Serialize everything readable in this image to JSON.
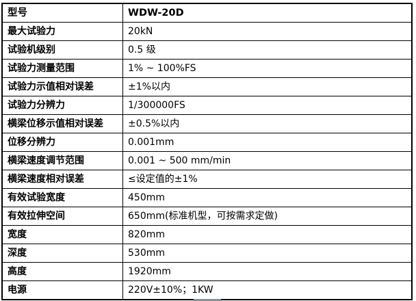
{
  "table": {
    "header": {
      "label": "型号",
      "value": "WDW-20D"
    },
    "rows": [
      {
        "label": "最大试验力",
        "value": "20kN"
      },
      {
        "label": "试验机级别",
        "value": "0.5 级"
      },
      {
        "label": "试验力测量范围",
        "value": "1% ~ 100%FS"
      },
      {
        "label": "试验力示值相对误差",
        "value": "±1%以内"
      },
      {
        "label": "试验力分辨力",
        "value": "1/300000FS"
      },
      {
        "label": "横梁位移示值相对误差",
        "value": "±0.5%以内"
      },
      {
        "label": "位移分辨力",
        "value": "0.001mm"
      },
      {
        "label": "横梁速度调节范围",
        "value": "0.001 ~ 500 mm/min"
      },
      {
        "label": "横梁速度相对误差",
        "value": "≤设定值的±1%"
      },
      {
        "label": "有效试验宽度",
        "value": "450mm"
      },
      {
        "label": "有效拉伸空间",
        "value": "650mm(标准机型，可按需求定做)"
      },
      {
        "label": "宽度",
        "value": "820mm"
      },
      {
        "label": "深度",
        "value": "530mm"
      },
      {
        "label": "高度",
        "value": "1920mm"
      },
      {
        "label": "电源",
        "value": "220V±10%；1KW"
      }
    ]
  },
  "colors": {
    "border": "#000000",
    "text": "#000000",
    "background": "#ffffff",
    "bottom_bar": "#8a8f94"
  }
}
